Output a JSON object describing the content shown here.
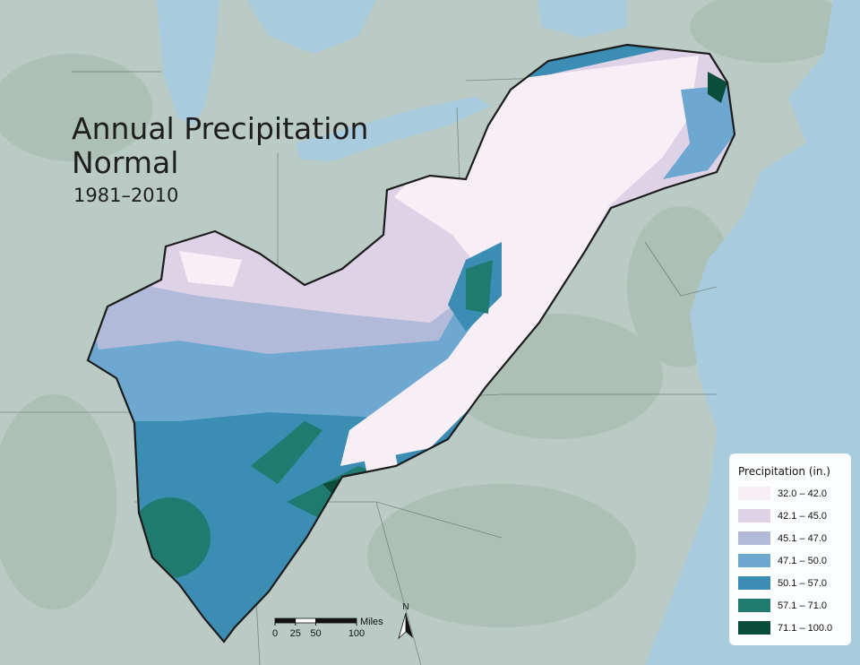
{
  "title_lines": [
    "Annual Precipitation",
    "Normal"
  ],
  "subtitle": "1981–2010",
  "legend": {
    "title": "Precipitation (in.)",
    "classes": [
      {
        "label": "32.0 – 42.0",
        "color": "#f8eff6"
      },
      {
        "label": "42.1 – 45.0",
        "color": "#ddd2e6"
      },
      {
        "label": "45.1 – 47.0",
        "color": "#b1bbd9"
      },
      {
        "label": "47.1 – 50.0",
        "color": "#6ea7d0"
      },
      {
        "label": "50.1 – 57.0",
        "color": "#3b8db3"
      },
      {
        "label": "57.1 – 71.0",
        "color": "#1f7a6f"
      },
      {
        "label": "71.1 – 100.0",
        "color": "#0c4c3b"
      }
    ]
  },
  "scale_bar": {
    "unit": "Miles",
    "ticks": [
      0,
      25,
      50,
      100
    ]
  },
  "north_label": "N"
}
